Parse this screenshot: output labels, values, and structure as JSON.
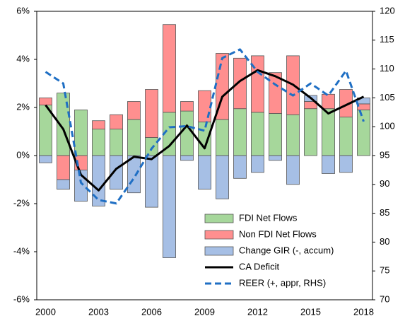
{
  "chart_data": {
    "type": "combo",
    "categories": [
      2000,
      null,
      null,
      2003,
      null,
      null,
      2006,
      null,
      null,
      2009,
      null,
      null,
      2012,
      null,
      null,
      2015,
      null,
      null,
      2018
    ],
    "ylim": [
      -6,
      6
    ],
    "yticks": [
      {
        "value": -6,
        "label": "-6%"
      },
      {
        "value": -4,
        "label": "-4%"
      },
      {
        "value": -2,
        "label": "-2%"
      },
      {
        "value": 0,
        "label": "0%"
      },
      {
        "value": 2,
        "label": "2%"
      },
      {
        "value": 4,
        "label": "4%"
      },
      {
        "value": 6,
        "label": "6%"
      }
    ],
    "y2lim": [
      70,
      120
    ],
    "y2ticks": [
      70,
      75,
      80,
      85,
      90,
      95,
      100,
      105,
      110,
      115,
      120
    ],
    "legend": "lower right",
    "series": [
      {
        "name": "FDI Net Flows",
        "type": "bar",
        "color": "#a6d79b",
        "values": [
          2.1,
          2.6,
          1.9,
          1.1,
          1.1,
          1.5,
          0.75,
          1.8,
          1.85,
          1.4,
          1.5,
          1.95,
          1.8,
          1.75,
          1.7,
          1.95,
          1.95,
          1.6,
          1.9
        ]
      },
      {
        "name": "Non FDI Net Flows",
        "type": "bar",
        "color": "#ff8f8f",
        "values": [
          0.3,
          -1.0,
          -0.6,
          0.35,
          0.6,
          0.75,
          2.0,
          3.65,
          0.4,
          1.3,
          2.75,
          2.1,
          2.35,
          1.7,
          2.45,
          0.3,
          0.6,
          1.15,
          0.25
        ]
      },
      {
        "name": "Change GIR (-, accum)",
        "type": "bar",
        "color": "#a6bfe5",
        "values": [
          -0.3,
          -0.4,
          -1.3,
          -2.1,
          -1.4,
          -1.55,
          -2.15,
          -4.25,
          -0.2,
          -1.4,
          -1.8,
          -0.95,
          -0.7,
          -0.2,
          -1.2,
          0.25,
          -0.75,
          -0.7,
          0.25
        ]
      },
      {
        "name": "CA Deficit",
        "type": "line",
        "color": "#000000",
        "dashed": false,
        "values": [
          2.1,
          1.1,
          -0.8,
          -1.45,
          -0.55,
          -0.05,
          -0.15,
          0.4,
          1.25,
          0.3,
          2.45,
          3.1,
          3.55,
          3.3,
          2.95,
          2.4,
          1.75,
          2.1,
          2.45
        ]
      },
      {
        "name": "REER (+, appr, RHS)",
        "type": "line",
        "axis": "y2",
        "color": "#1f6fc4",
        "dashed": true,
        "values": [
          109.5,
          107.5,
          90.3,
          87.3,
          86.7,
          91.1,
          96.2,
          99.9,
          100.1,
          99.3,
          111.9,
          113.4,
          109.5,
          107.3,
          105.4,
          107.5,
          105.4,
          109.7,
          100.9
        ]
      }
    ]
  }
}
